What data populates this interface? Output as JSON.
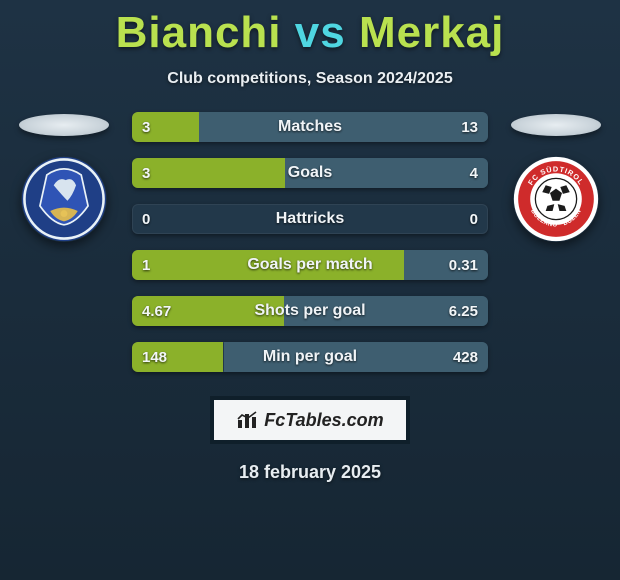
{
  "title": {
    "player1": "Bianchi",
    "vs": "vs",
    "player2": "Merkaj",
    "player1_color": "#b9e14f",
    "vs_color": "#4fd6e1",
    "player2_color": "#b9e14f"
  },
  "subtitle": "Club competitions, Season 2024/2025",
  "date": "18 february 2025",
  "colors": {
    "bg_top": "#1e3244",
    "bg_bottom": "#162633",
    "bar_track": "#243845",
    "left_fill": "#8bb12a",
    "right_fill": "#406072"
  },
  "crest_left": {
    "outer": "#1f3f86",
    "ring": "#e9f2f7",
    "inner": "#2f54b5",
    "ribbon": "#d7b554",
    "figure": "#d8e4ef"
  },
  "crest_right": {
    "outer": "#cf2b2b",
    "ring": "#ffffff",
    "ball_base": "#ffffff",
    "ball_hex": "#1b1b1b",
    "text_color": "#ffffff"
  },
  "bars_meta": {
    "track_color": "#22384a",
    "left_color": "#8bb12a",
    "right_color": "#3e5e70",
    "label_fontsize": 16,
    "value_fontsize": 15,
    "height": 30,
    "radius": 6
  },
  "bars": [
    {
      "label": "Matches",
      "left": "3",
      "right": "13",
      "l_pct": 18.8,
      "r_pct": 81.2
    },
    {
      "label": "Goals",
      "left": "3",
      "right": "4",
      "l_pct": 42.9,
      "r_pct": 57.1
    },
    {
      "label": "Hattricks",
      "left": "0",
      "right": "0",
      "l_pct": 0,
      "r_pct": 0
    },
    {
      "label": "Goals per match",
      "left": "1",
      "right": "0.31",
      "l_pct": 76.3,
      "r_pct": 23.7
    },
    {
      "label": "Shots per goal",
      "left": "4.67",
      "right": "6.25",
      "l_pct": 42.8,
      "r_pct": 57.2
    },
    {
      "label": "Min per goal",
      "left": "148",
      "right": "428",
      "l_pct": 25.7,
      "r_pct": 74.3
    }
  ],
  "brand": {
    "text_pre": "Fc",
    "text_main": "Tables",
    "text_suf": ".com"
  }
}
